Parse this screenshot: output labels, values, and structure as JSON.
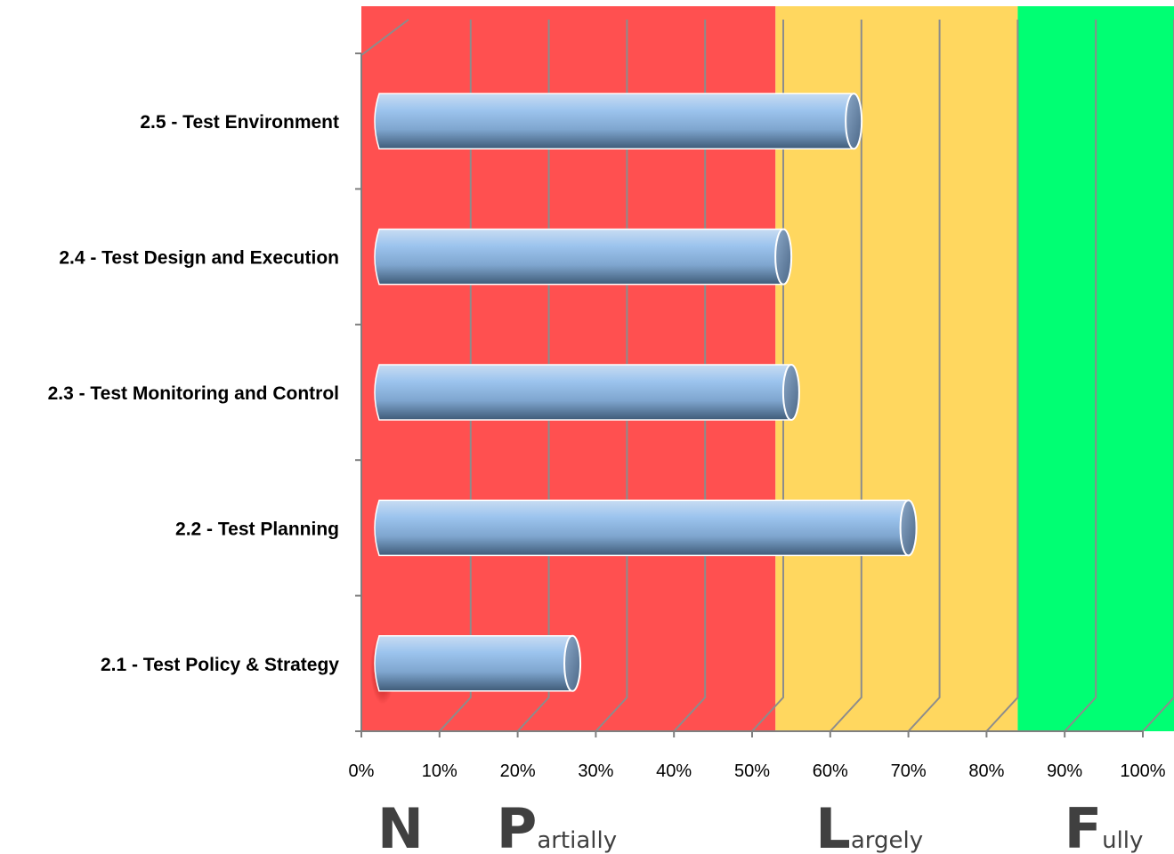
{
  "chart_data": {
    "type": "bar",
    "orientation": "horizontal",
    "categories": [
      "2.1 - Test Policy & Strategy",
      "2.2 - Test Planning",
      "2.3 - Test Monitoring and Control",
      "2.4 - Test Design and Execution",
      "2.5 - Test Environment"
    ],
    "values": [
      27,
      70,
      55,
      54,
      63
    ],
    "xlim": [
      0,
      100
    ],
    "xticks": [
      "0%",
      "10%",
      "20%",
      "30%",
      "40%",
      "50%",
      "60%",
      "70%",
      "80%",
      "90%",
      "100%"
    ],
    "grid": true,
    "legend": "none",
    "bar_color": "#8db8e8",
    "bands": [
      {
        "from": 0,
        "to": 51,
        "color": "#ff5050"
      },
      {
        "from": 51,
        "to": 82,
        "color": "#ffd75f"
      },
      {
        "from": 82,
        "to": 100,
        "color": "#00ff73"
      }
    ],
    "scale_labels": [
      {
        "initial": "N",
        "rest": "",
        "at": 5
      },
      {
        "initial": "P",
        "rest": "artially",
        "at": 25
      },
      {
        "initial": "L",
        "rest": "argely",
        "at": 65
      },
      {
        "initial": "F",
        "rest": "ully",
        "at": 95
      }
    ]
  }
}
